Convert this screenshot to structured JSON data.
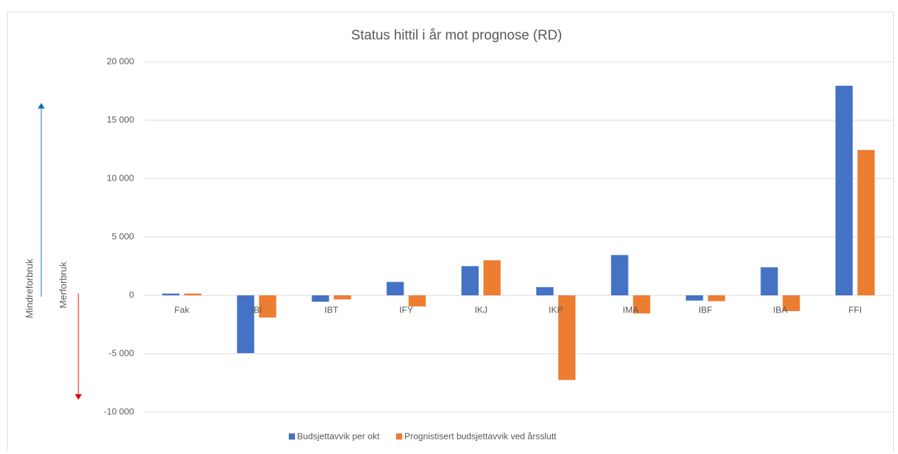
{
  "chart_data": {
    "type": "bar",
    "title": "Status hittil i år mot prognose (RD)",
    "annotations": [
      "Mindreforbruk",
      "Merforbruk"
    ],
    "categories": [
      "Fak",
      "IBI",
      "IBT",
      "IFY",
      "IKJ",
      "IKP",
      "IMA",
      "IBF",
      "IBA",
      "FFI"
    ],
    "series": [
      {
        "name": "Budsjettavvik per okt",
        "color": "#4472c4",
        "values": [
          150,
          -4950,
          -550,
          1150,
          2500,
          700,
          3450,
          -450,
          2400,
          17950
        ]
      },
      {
        "name": "Prognistisert budsjettavvik ved årsslutt",
        "color": "#ed7d31",
        "values": [
          150,
          -1900,
          -350,
          -950,
          3000,
          -7250,
          -1550,
          -500,
          -1350,
          12450
        ]
      }
    ],
    "ylim": [
      -10000,
      20000
    ],
    "yticks": [
      {
        "value": -10000,
        "label": "-10 000"
      },
      {
        "value": -5000,
        "label": "-5 000"
      },
      0,
      {
        "value": 5000,
        "label": "5 000"
      },
      {
        "value": 10000,
        "label": "10 000"
      },
      {
        "value": 15000,
        "label": "15 000"
      },
      {
        "value": 20000,
        "label": "20 000"
      }
    ],
    "grid": true,
    "legend": "bottom"
  }
}
